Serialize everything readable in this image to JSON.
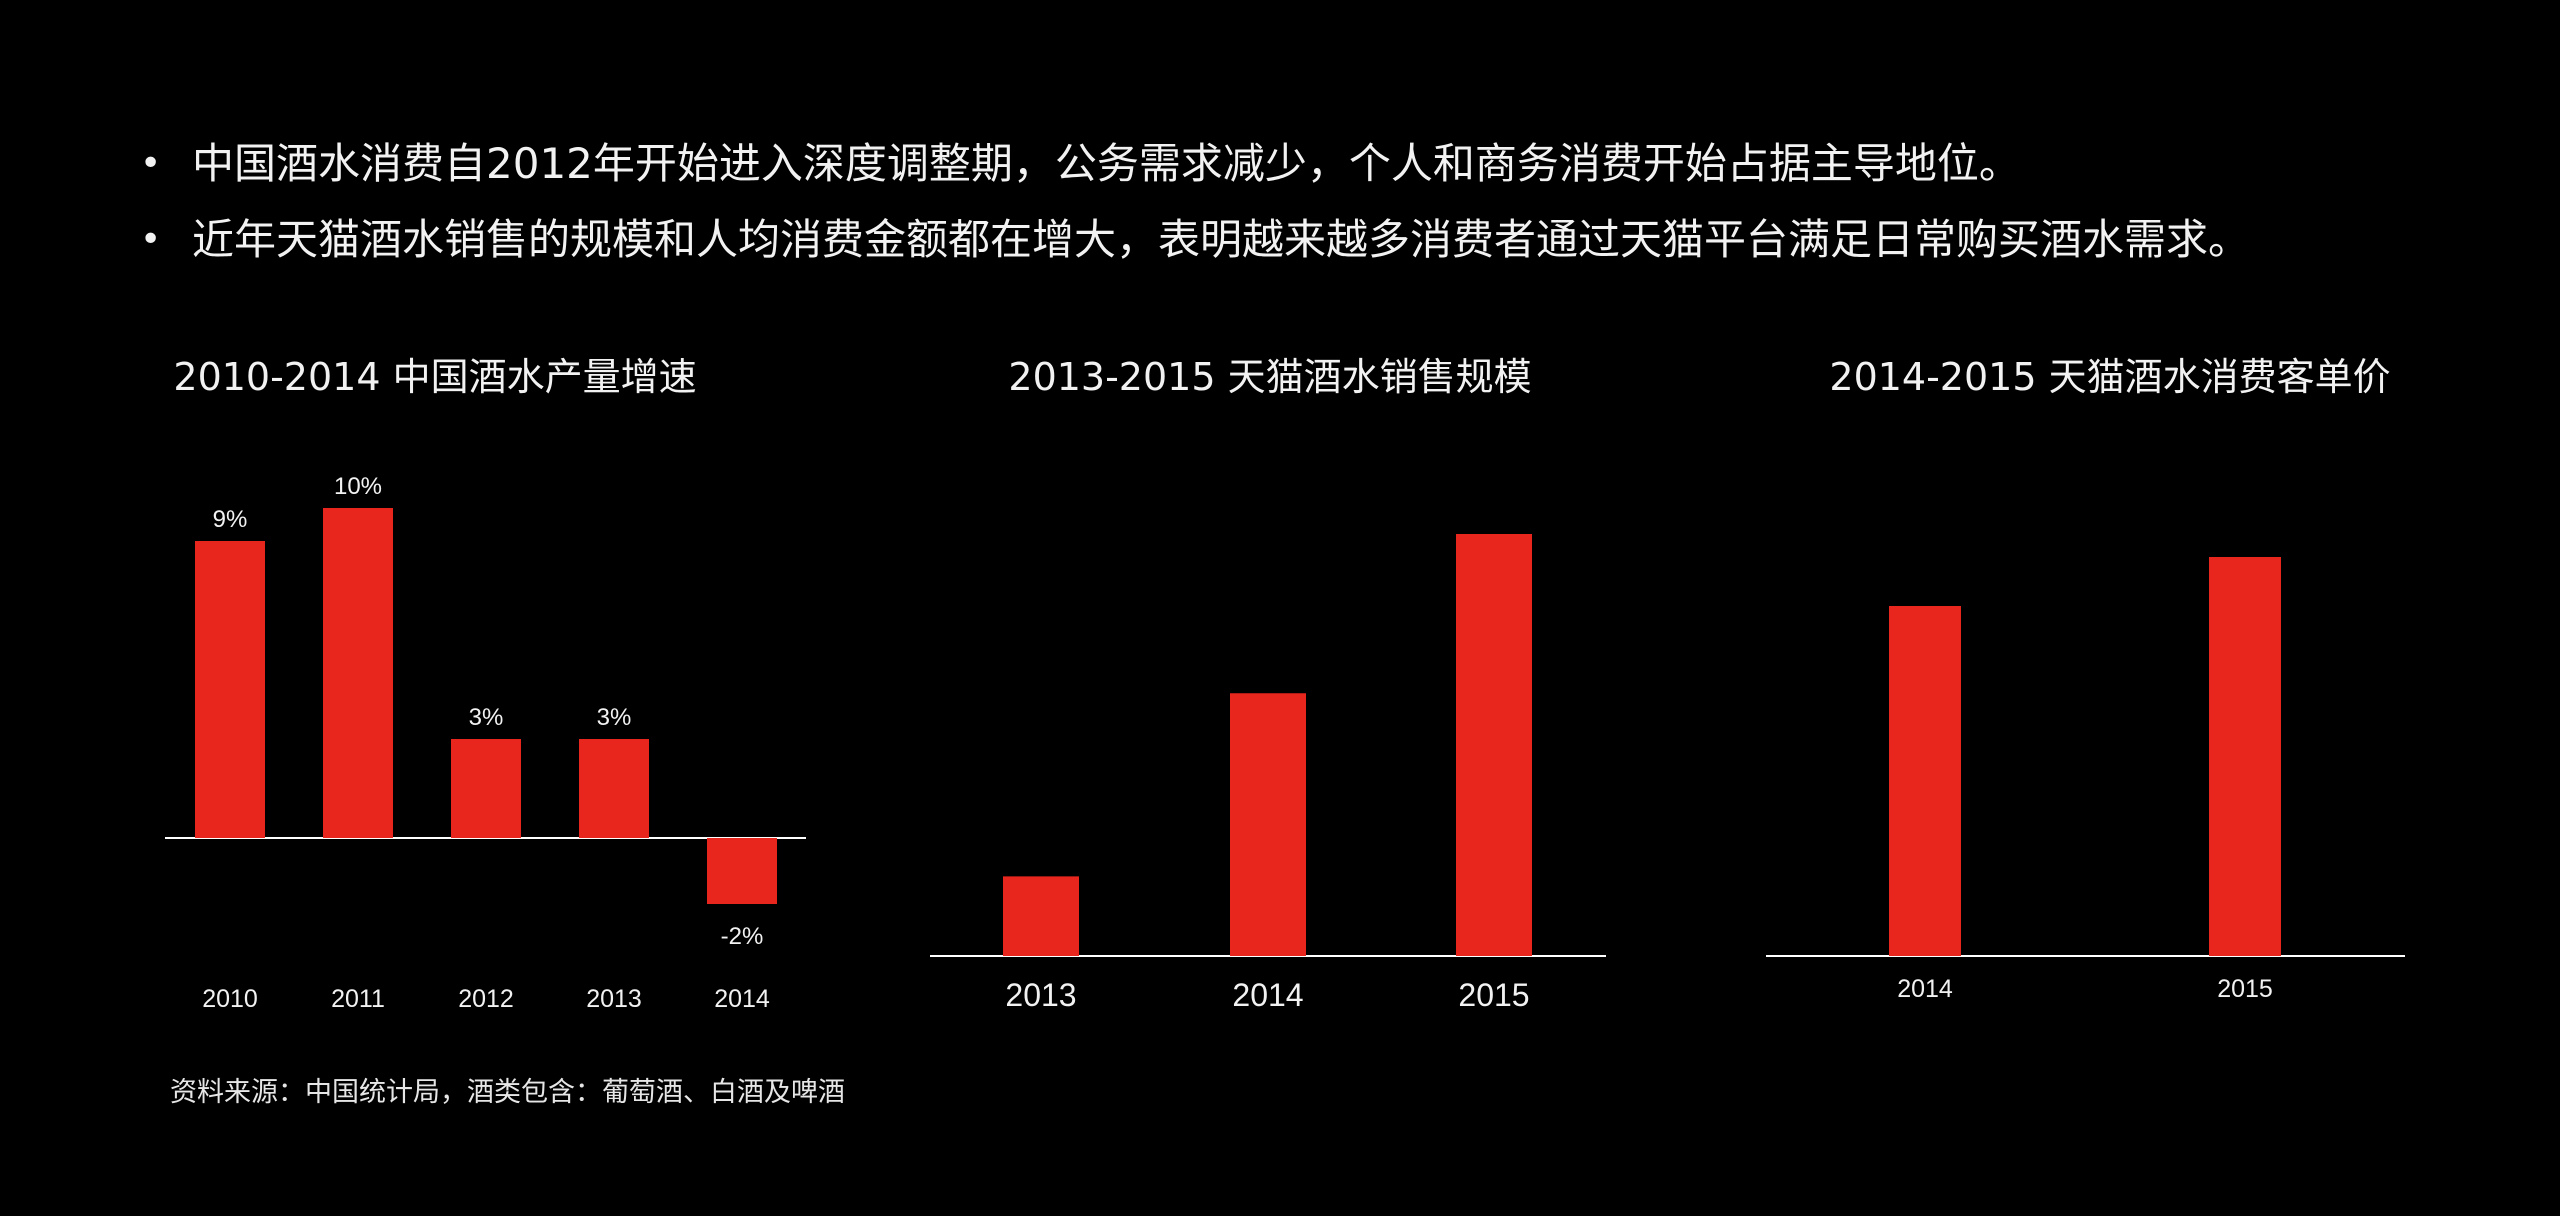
{
  "bullets": [
    "中国酒水消费自2012年开始进入深度调整期，公务需求减少，个人和商务消费开始占据主导地位。",
    "近年天猫酒水销售的规模和人均消费金额都在增大，表明越来越多消费者通过天猫平台满足日常购买酒水需求。"
  ],
  "bullet_symbol": "•",
  "source_note": "资料来源：中国统计局，酒类包含：葡萄酒、白酒及啤酒",
  "colors": {
    "background": "#000000",
    "bar": "#e8261d",
    "axis": "#ffffff",
    "text": "#f2f2f2"
  },
  "chart_data": [
    {
      "type": "bar",
      "title": "2010-2014 中国酒水产量增速",
      "categories": [
        "2010",
        "2011",
        "2012",
        "2013",
        "2014"
      ],
      "values": [
        9,
        10,
        3,
        3,
        -2
      ],
      "data_labels": [
        "9%",
        "10%",
        "3%",
        "3%",
        "-2%"
      ],
      "unit": "%",
      "ylim": [
        -2,
        10
      ],
      "grid": false,
      "legend": "none"
    },
    {
      "type": "bar",
      "title": "2013-2015 天猫酒水销售规模",
      "categories": [
        "2013",
        "2014",
        "2015"
      ],
      "values": [
        1.0,
        3.3,
        5.3
      ],
      "ylim": [
        0,
        5.3
      ],
      "grid": false,
      "legend": "none"
    },
    {
      "type": "bar",
      "title": "2014-2015 天猫酒水消费客单价",
      "categories": [
        "2014",
        "2015"
      ],
      "values": [
        1.0,
        1.14
      ],
      "ylim": [
        0,
        1.14
      ],
      "grid": false,
      "legend": "none"
    }
  ]
}
